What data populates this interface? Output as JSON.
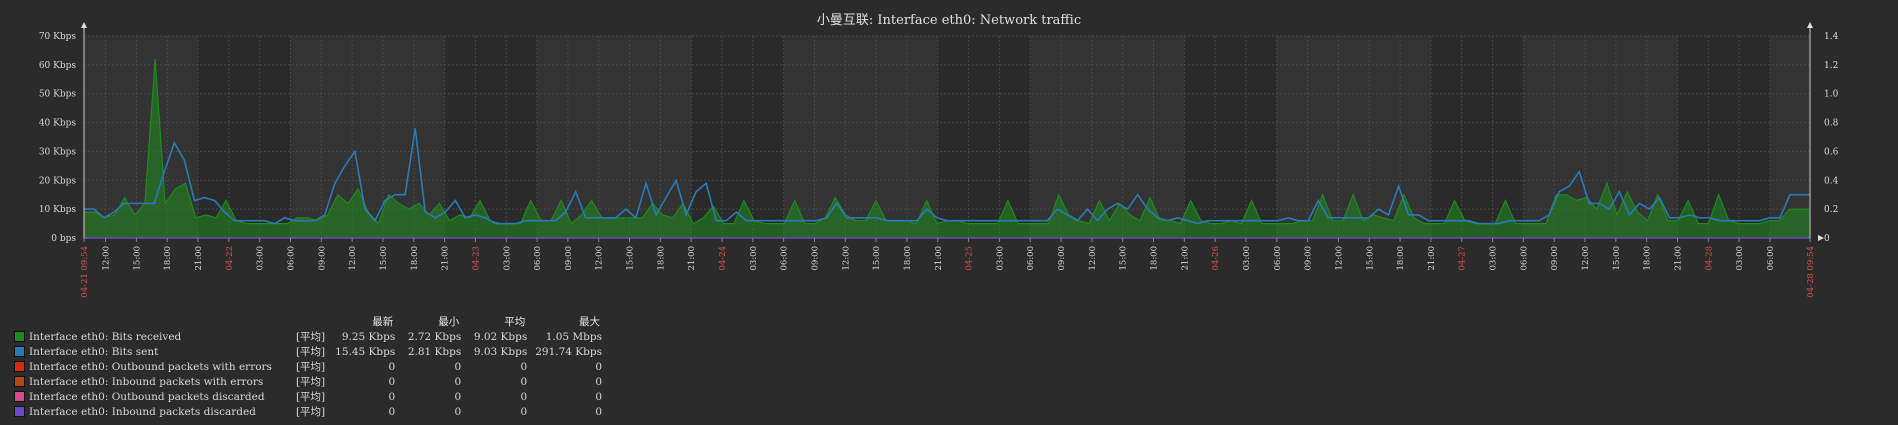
{
  "colors": {
    "background": "#2b2b2b",
    "plot_bg": "#333333",
    "plot_band": "#2a2a2a",
    "grid": "#4a4a4a",
    "text": "#d8d8d8",
    "date_text": "#e05050",
    "received": "#1f8a1f",
    "sent": "#2a7ab8"
  },
  "chart_data": {
    "type": "line",
    "title": "小曼互联: Interface eth0: Network traffic",
    "y_left": {
      "ticks": [
        "0 bps",
        "10 Kbps",
        "20 Kbps",
        "30 Kbps",
        "40 Kbps",
        "50 Kbps",
        "60 Kbps",
        "70 Kbps"
      ],
      "range": [
        0,
        70
      ],
      "unit": "Kbps"
    },
    "y_right": {
      "ticks": [
        "0",
        "0.2",
        "0.4",
        "0.6",
        "0.8",
        "1.0",
        "1.2",
        "1.4"
      ],
      "range": [
        0,
        1.4
      ]
    },
    "x": {
      "start_label": "04-21 09:54",
      "end_label": "04-28 09:54",
      "labels": [
        {
          "t": "04-21 09:54",
          "kind": "date"
        },
        {
          "t": "12:00"
        },
        {
          "t": "15:00"
        },
        {
          "t": "18:00"
        },
        {
          "t": "21:00"
        },
        {
          "t": "04-22",
          "kind": "date"
        },
        {
          "t": "03:00"
        },
        {
          "t": "06:00"
        },
        {
          "t": "09:00"
        },
        {
          "t": "12:00"
        },
        {
          "t": "15:00"
        },
        {
          "t": "18:00"
        },
        {
          "t": "21:00"
        },
        {
          "t": "04-23",
          "kind": "date"
        },
        {
          "t": "03:00"
        },
        {
          "t": "06:00"
        },
        {
          "t": "09:00"
        },
        {
          "t": "12:00"
        },
        {
          "t": "15:00"
        },
        {
          "t": "18:00"
        },
        {
          "t": "21:00"
        },
        {
          "t": "04-24",
          "kind": "date"
        },
        {
          "t": "03:00"
        },
        {
          "t": "06:00"
        },
        {
          "t": "09:00"
        },
        {
          "t": "12:00"
        },
        {
          "t": "15:00"
        },
        {
          "t": "18:00"
        },
        {
          "t": "21:00"
        },
        {
          "t": "04-25",
          "kind": "date"
        },
        {
          "t": "03:00"
        },
        {
          "t": "06:00"
        },
        {
          "t": "09:00"
        },
        {
          "t": "12:00"
        },
        {
          "t": "15:00"
        },
        {
          "t": "18:00"
        },
        {
          "t": "21:00"
        },
        {
          "t": "04-26",
          "kind": "date"
        },
        {
          "t": "03:00"
        },
        {
          "t": "06:00"
        },
        {
          "t": "09:00"
        },
        {
          "t": "12:00"
        },
        {
          "t": "15:00"
        },
        {
          "t": "18:00"
        },
        {
          "t": "21:00"
        },
        {
          "t": "04-27",
          "kind": "date"
        },
        {
          "t": "03:00"
        },
        {
          "t": "06:00"
        },
        {
          "t": "09:00"
        },
        {
          "t": "12:00"
        },
        {
          "t": "15:00"
        },
        {
          "t": "18:00"
        },
        {
          "t": "21:00"
        },
        {
          "t": "04-28",
          "kind": "date"
        },
        {
          "t": "03:00"
        },
        {
          "t": "06:00"
        },
        {
          "t": "04-28 09:54",
          "kind": "date"
        }
      ]
    },
    "series": [
      {
        "name": "Interface eth0: Bits received",
        "style": "area",
        "values": [
          9,
          9,
          7,
          8,
          14,
          8,
          12,
          62,
          12,
          17,
          19,
          7,
          8,
          7,
          13,
          6,
          5,
          5,
          5,
          5,
          5,
          7,
          7,
          6,
          8,
          15,
          12,
          17,
          9,
          5,
          15,
          12,
          10,
          12,
          8,
          12,
          6,
          8,
          7,
          13,
          6,
          5,
          5,
          5,
          13,
          6,
          6,
          13,
          5,
          8,
          13,
          7,
          7,
          7,
          7,
          7,
          12,
          8,
          7,
          12,
          5,
          7,
          11,
          5,
          5,
          13,
          6,
          5,
          5,
          5,
          13,
          5,
          5,
          7,
          14,
          8,
          6,
          6,
          13,
          6,
          6,
          6,
          5,
          13,
          5,
          6,
          6,
          5,
          5,
          5,
          5,
          13,
          5,
          5,
          5,
          5,
          15,
          8,
          6,
          5,
          13,
          6,
          12,
          8,
          6,
          14,
          6,
          6,
          5,
          13,
          6,
          5,
          5,
          6,
          5,
          13,
          5,
          5,
          5,
          5,
          6,
          6,
          15,
          6,
          6,
          15,
          6,
          8,
          7,
          6,
          15,
          7,
          5,
          5,
          5,
          13,
          6,
          5,
          5,
          5,
          13,
          5,
          5,
          5,
          5,
          15,
          15,
          13,
          14,
          10,
          19,
          8,
          16,
          9,
          6,
          15,
          6,
          6,
          13,
          5,
          5,
          15,
          6,
          5,
          5,
          5,
          6,
          6,
          10,
          10,
          10
        ]
      },
      {
        "name": "Interface eth0: Bits sent",
        "style": "line",
        "values": [
          10,
          10,
          7,
          9,
          12,
          12,
          12,
          12,
          23,
          33,
          27,
          13,
          14,
          13,
          9,
          6,
          6,
          6,
          6,
          5,
          7,
          6,
          6,
          6,
          8,
          19,
          25,
          30,
          10,
          6,
          13,
          15,
          15,
          38,
          9,
          7,
          9,
          13,
          7,
          8,
          7,
          5,
          5,
          5,
          6,
          6,
          6,
          6,
          9,
          16,
          7,
          7,
          7,
          7,
          10,
          7,
          19,
          8,
          14,
          20,
          8,
          16,
          19,
          6,
          6,
          9,
          6,
          6,
          6,
          6,
          6,
          6,
          6,
          6,
          7,
          12,
          7,
          7,
          7,
          7,
          6,
          6,
          6,
          6,
          10,
          7,
          6,
          6,
          6,
          6,
          6,
          6,
          6,
          6,
          6,
          6,
          6,
          10,
          8,
          6,
          10,
          6,
          10,
          12,
          10,
          15,
          10,
          7,
          6,
          7,
          6,
          5,
          6,
          6,
          6,
          6,
          6,
          6,
          6,
          6,
          7,
          6,
          6,
          13,
          7,
          7,
          7,
          7,
          7,
          10,
          8,
          18,
          8,
          8,
          6,
          6,
          6,
          6,
          6,
          5,
          5,
          5,
          6,
          6,
          6,
          6,
          8,
          16,
          18,
          23,
          12,
          12,
          10,
          16,
          8,
          12,
          10,
          14,
          7,
          7,
          8,
          7,
          7,
          6,
          6,
          6,
          6,
          6,
          7,
          7,
          15,
          15,
          15
        ]
      }
    ]
  },
  "legend": {
    "headers": [
      "最新",
      "最小",
      "平均",
      "最大"
    ],
    "rows": [
      {
        "color": "#1f8a1f",
        "name": "Interface eth0: Bits received",
        "func": "[平均]",
        "last": "9.25 Kbps",
        "min": "2.72 Kbps",
        "avg": "9.02 Kbps",
        "max": "1.05 Mbps"
      },
      {
        "color": "#2a7ab8",
        "name": "Interface eth0: Bits sent",
        "func": "[平均]",
        "last": "15.45 Kbps",
        "min": "2.81 Kbps",
        "avg": "9.03 Kbps",
        "max": "291.74 Kbps"
      },
      {
        "color": "#d42c0a",
        "name": "Interface eth0: Outbound packets with errors",
        "func": "[平均]",
        "last": "0",
        "min": "0",
        "avg": "0",
        "max": "0"
      },
      {
        "color": "#b04a10",
        "name": "Interface eth0: Inbound packets with errors",
        "func": "[平均]",
        "last": "0",
        "min": "0",
        "avg": "0",
        "max": "0"
      },
      {
        "color": "#d44a8a",
        "name": "Interface eth0: Outbound packets discarded",
        "func": "[平均]",
        "last": "0",
        "min": "0",
        "avg": "0",
        "max": "0"
      },
      {
        "color": "#6a4ac8",
        "name": "Interface eth0: Inbound packets discarded",
        "func": "[平均]",
        "last": "0",
        "min": "0",
        "avg": "0",
        "max": "0"
      }
    ]
  }
}
